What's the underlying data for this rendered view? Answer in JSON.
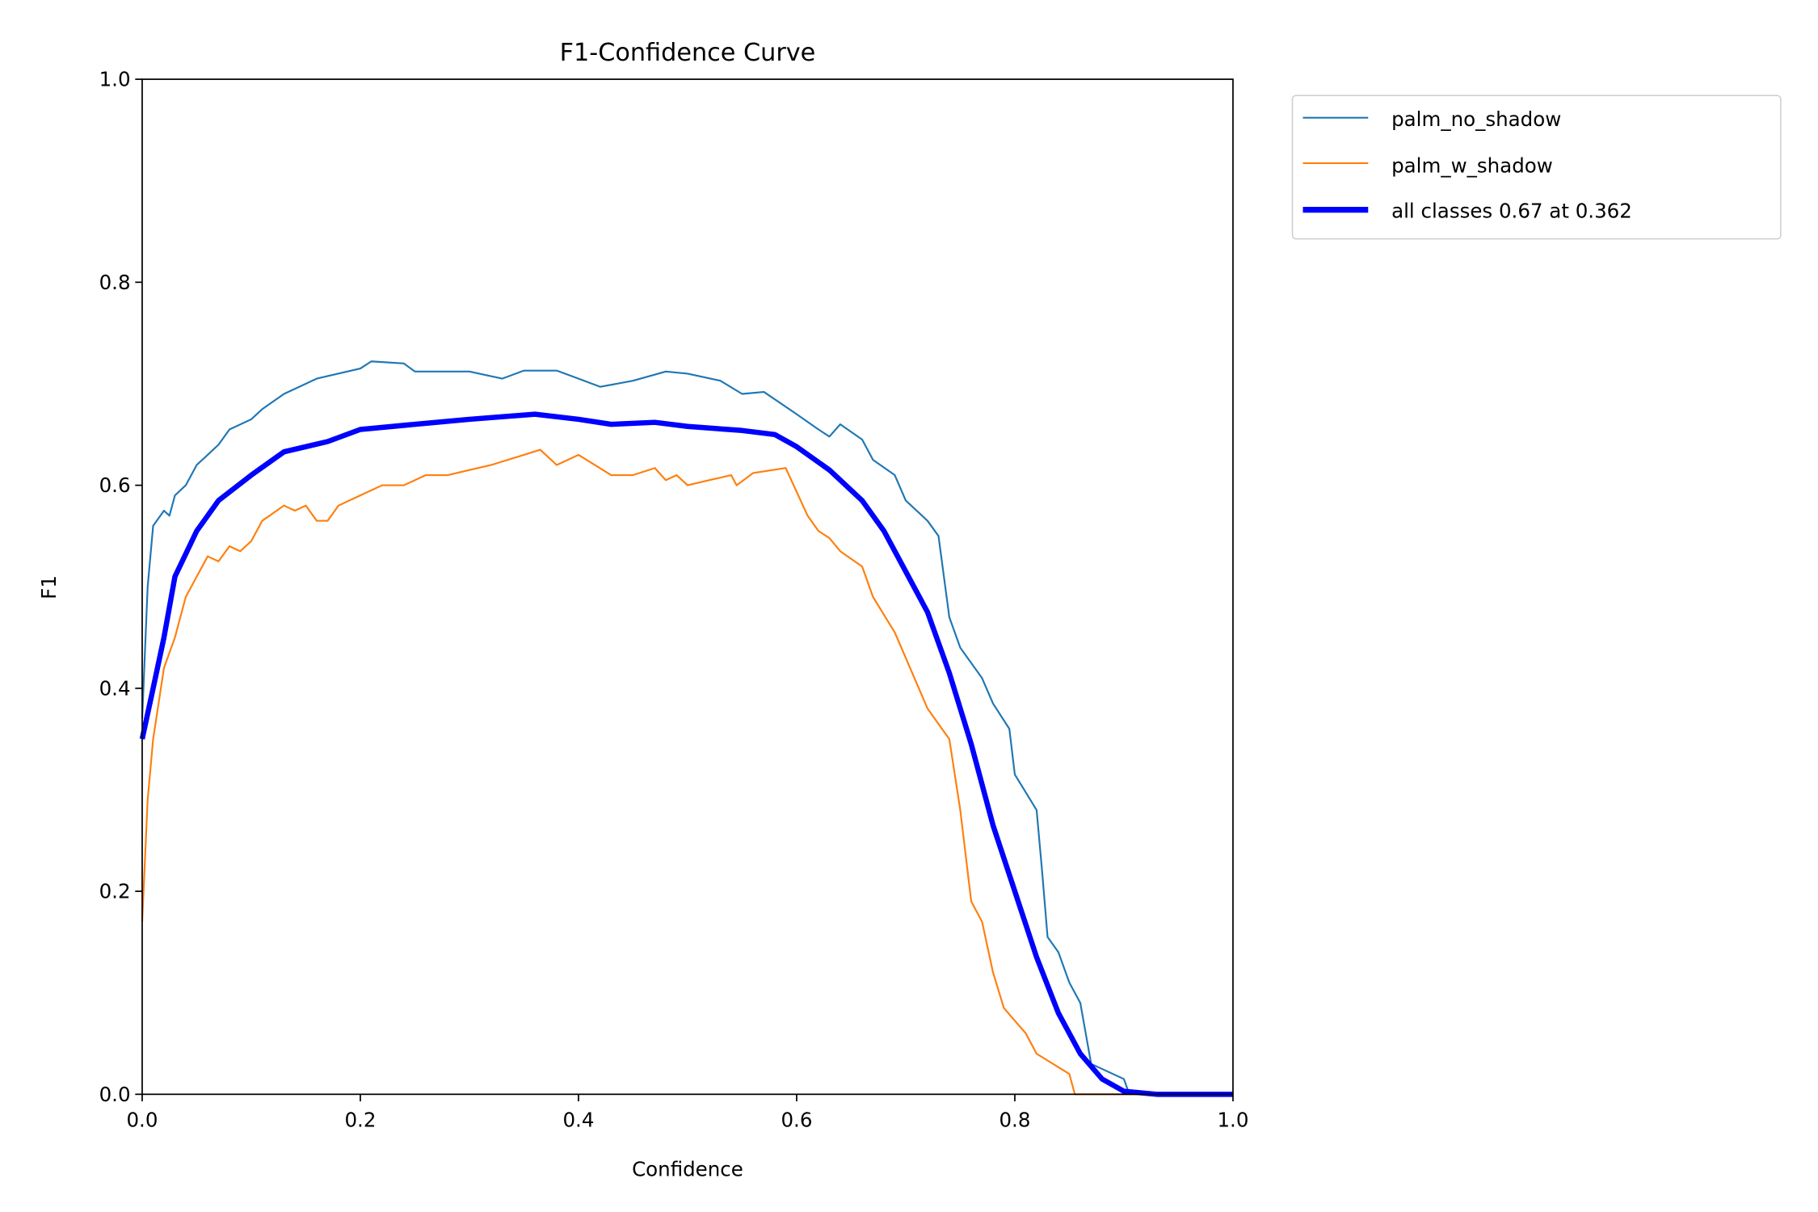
{
  "chart_data": {
    "type": "line",
    "title": "F1-Confidence Curve",
    "xlabel": "Confidence",
    "ylabel": "F1",
    "xlim": [
      0,
      1
    ],
    "ylim": [
      0,
      1
    ],
    "xticks": [
      "0.0",
      "0.2",
      "0.4",
      "0.6",
      "0.8",
      "1.0"
    ],
    "yticks": [
      "0.0",
      "0.2",
      "0.4",
      "0.6",
      "0.8",
      "1.0"
    ],
    "grid": false,
    "legend_position": "outside-top-right",
    "series": [
      {
        "name": "palm_no_shadow",
        "color": "#1f77b4",
        "x": [
          0,
          0.005,
          0.01,
          0.02,
          0.025,
          0.03,
          0.04,
          0.05,
          0.06,
          0.07,
          0.08,
          0.1,
          0.11,
          0.13,
          0.16,
          0.2,
          0.21,
          0.24,
          0.25,
          0.3,
          0.33,
          0.35,
          0.38,
          0.4,
          0.42,
          0.45,
          0.48,
          0.5,
          0.53,
          0.55,
          0.57,
          0.6,
          0.62,
          0.63,
          0.64,
          0.66,
          0.67,
          0.69,
          0.7,
          0.71,
          0.72,
          0.73,
          0.74,
          0.75,
          0.77,
          0.78,
          0.795,
          0.8,
          0.82,
          0.825,
          0.83,
          0.84,
          0.85,
          0.86,
          0.87,
          0.9,
          0.905,
          1.0
        ],
        "y": [
          0.37,
          0.5,
          0.56,
          0.575,
          0.57,
          0.59,
          0.6,
          0.62,
          0.63,
          0.64,
          0.655,
          0.665,
          0.675,
          0.69,
          0.705,
          0.715,
          0.722,
          0.72,
          0.712,
          0.712,
          0.705,
          0.713,
          0.713,
          0.705,
          0.697,
          0.703,
          0.712,
          0.71,
          0.703,
          0.69,
          0.692,
          0.67,
          0.655,
          0.648,
          0.66,
          0.645,
          0.625,
          0.61,
          0.585,
          0.575,
          0.565,
          0.55,
          0.47,
          0.44,
          0.41,
          0.385,
          0.36,
          0.315,
          0.28,
          0.22,
          0.155,
          0.14,
          0.11,
          0.09,
          0.03,
          0.015,
          0.0,
          0.0
        ]
      },
      {
        "name": "palm_w_shadow",
        "color": "#ff7f0e",
        "x": [
          0,
          0.005,
          0.01,
          0.02,
          0.03,
          0.04,
          0.05,
          0.06,
          0.07,
          0.08,
          0.09,
          0.1,
          0.11,
          0.13,
          0.14,
          0.15,
          0.16,
          0.17,
          0.18,
          0.2,
          0.22,
          0.24,
          0.26,
          0.28,
          0.3,
          0.32,
          0.35,
          0.365,
          0.38,
          0.4,
          0.43,
          0.45,
          0.47,
          0.48,
          0.49,
          0.5,
          0.52,
          0.54,
          0.545,
          0.56,
          0.59,
          0.61,
          0.62,
          0.63,
          0.64,
          0.66,
          0.67,
          0.69,
          0.7,
          0.72,
          0.74,
          0.75,
          0.76,
          0.77,
          0.78,
          0.79,
          0.81,
          0.82,
          0.85,
          0.855,
          1.0
        ],
        "y": [
          0.17,
          0.29,
          0.35,
          0.42,
          0.45,
          0.49,
          0.51,
          0.53,
          0.525,
          0.54,
          0.535,
          0.545,
          0.565,
          0.58,
          0.575,
          0.58,
          0.565,
          0.565,
          0.58,
          0.59,
          0.6,
          0.6,
          0.61,
          0.61,
          0.615,
          0.62,
          0.63,
          0.635,
          0.62,
          0.63,
          0.61,
          0.61,
          0.617,
          0.605,
          0.61,
          0.6,
          0.605,
          0.61,
          0.6,
          0.612,
          0.617,
          0.57,
          0.555,
          0.548,
          0.535,
          0.52,
          0.49,
          0.455,
          0.43,
          0.38,
          0.35,
          0.28,
          0.19,
          0.17,
          0.12,
          0.085,
          0.06,
          0.04,
          0.02,
          0.0,
          0.0
        ]
      },
      {
        "name": "all classes 0.67 at 0.362",
        "color": "#0000ff",
        "x": [
          0,
          0.01,
          0.02,
          0.03,
          0.05,
          0.07,
          0.1,
          0.13,
          0.17,
          0.2,
          0.25,
          0.3,
          0.36,
          0.4,
          0.43,
          0.47,
          0.5,
          0.55,
          0.58,
          0.6,
          0.63,
          0.66,
          0.68,
          0.7,
          0.72,
          0.74,
          0.76,
          0.78,
          0.8,
          0.82,
          0.84,
          0.86,
          0.88,
          0.9,
          0.93,
          1.0
        ],
        "y": [
          0.35,
          0.4,
          0.45,
          0.51,
          0.555,
          0.585,
          0.61,
          0.633,
          0.643,
          0.655,
          0.66,
          0.665,
          0.67,
          0.665,
          0.66,
          0.662,
          0.658,
          0.654,
          0.65,
          0.638,
          0.615,
          0.585,
          0.555,
          0.515,
          0.475,
          0.415,
          0.345,
          0.265,
          0.2,
          0.135,
          0.08,
          0.04,
          0.015,
          0.003,
          0.0,
          0.0
        ]
      }
    ]
  }
}
